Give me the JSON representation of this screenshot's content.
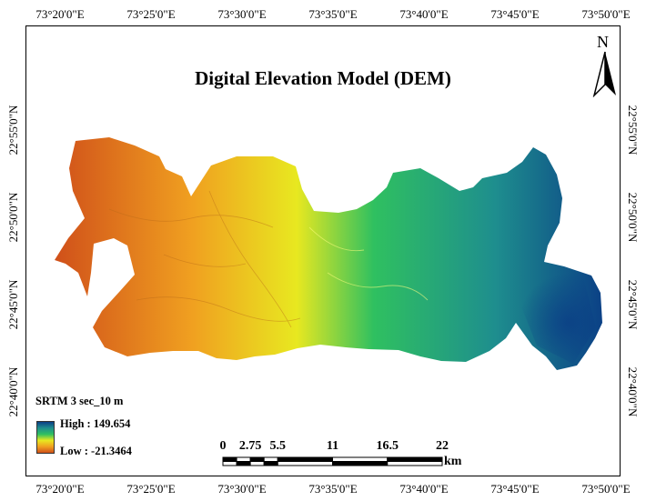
{
  "map": {
    "title": "Digital Elevation Model (DEM)",
    "north_label": "N",
    "top_longitudes": [
      "73°20'0\"E",
      "73°25'0\"E",
      "73°30'0\"E",
      "73°35'0\"E",
      "73°40'0\"E",
      "73°45'0\"E",
      "73°50'0\"E"
    ],
    "bottom_longitudes": [
      "73°20'0\"E",
      "73°25'0\"E",
      "73°30'0\"E",
      "73°35'0\"E",
      "73°40'0\"E",
      "73°45'0\"E",
      "73°50'0\"E"
    ],
    "left_latitudes": [
      "22°55'0\"N",
      "22°50'0\"N",
      "22°45'0\"N",
      "22°40'0\"N"
    ],
    "right_latitudes": [
      "22°55'0\"N",
      "22°50'0\"N",
      "22°45'0\"N",
      "22°40'0\"N"
    ]
  },
  "legend": {
    "title": "SRTM 3 sec_10 m",
    "high_label": "High : 149.654",
    "low_label": "Low : -21.3464",
    "colors": [
      "#0b3f86",
      "#1e8e8e",
      "#2fc060",
      "#e8e820",
      "#f0a020",
      "#d0501a"
    ]
  },
  "scalebar": {
    "labels": [
      "0",
      "2.75",
      "5.5",
      "11",
      "16.5",
      "22"
    ],
    "values": [
      0,
      2.75,
      5.5,
      11,
      16.5,
      22
    ],
    "unit": "km"
  }
}
